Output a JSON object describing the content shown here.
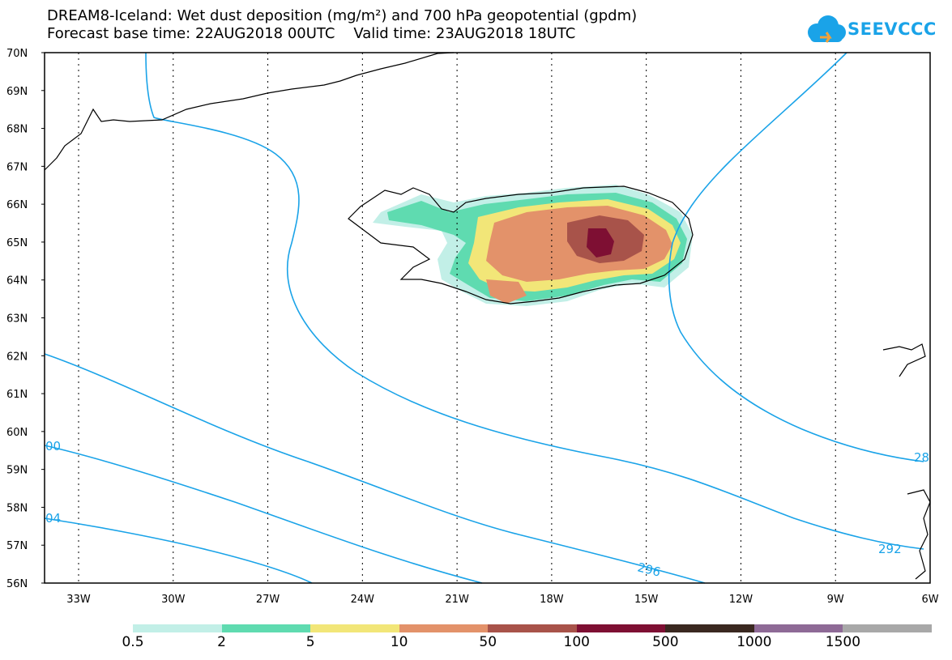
{
  "header": {
    "title_line1": "DREAM8-Iceland: Wet dust deposition (mg/m²) and 700 hPa geopotential (gpdm)",
    "title_line2": "Forecast base time: 22AUG2018 00UTC    Valid time: 23AUG2018 18UTC"
  },
  "logo": {
    "text": "SEEVCCC",
    "icon": "cloud-logo-icon",
    "color": "#1aa3e8"
  },
  "map": {
    "lat_labels": [
      "70N",
      "69N",
      "68N",
      "67N",
      "66N",
      "65N",
      "64N",
      "63N",
      "62N",
      "61N",
      "60N",
      "59N",
      "58N",
      "57N",
      "56N"
    ],
    "lon_labels": [
      "33W",
      "30W",
      "27W",
      "24W",
      "21W",
      "18W",
      "15W",
      "12W",
      "9W",
      "6W"
    ],
    "contour_labels": [
      {
        "text": "00"
      },
      {
        "text": "04"
      },
      {
        "text": "296"
      },
      {
        "text": "292"
      },
      {
        "text": "28"
      }
    ],
    "contour_color": "#1aa3e8",
    "gridline_style": "dotted",
    "coastline_color": "#000000"
  },
  "legend": {
    "values": [
      "0.5",
      "2",
      "5",
      "10",
      "50",
      "100",
      "500",
      "1000",
      "1500"
    ],
    "colors": [
      "#c2efe7",
      "#5fdbb0",
      "#f2e678",
      "#e3926a",
      "#a8534a",
      "#7e0f33",
      "#3a2820",
      "#8e6a96",
      "#a8a8a8"
    ]
  }
}
